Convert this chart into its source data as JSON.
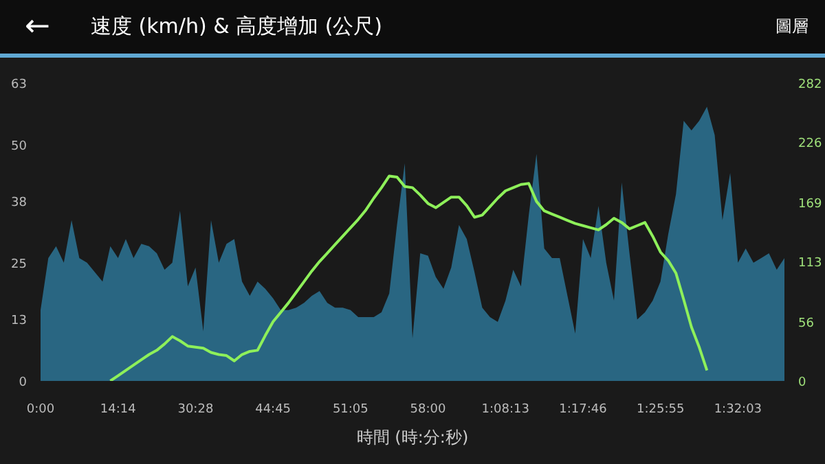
{
  "chart_data": {
    "type": "area",
    "title": "速度 (km/h) & 高度增加 (公尺)",
    "xlabel": "時間 (時:分:秒)",
    "annotations": [
      "←",
      "圖層"
    ],
    "categories": [
      "0:00",
      null,
      null,
      null,
      null,
      null,
      null,
      null,
      null,
      null,
      "14:14",
      null,
      null,
      null,
      null,
      null,
      null,
      null,
      null,
      null,
      "30:28",
      null,
      null,
      null,
      null,
      null,
      null,
      null,
      null,
      null,
      "44:45",
      null,
      null,
      null,
      null,
      null,
      null,
      null,
      null,
      null,
      "51:05",
      null,
      null,
      null,
      null,
      null,
      null,
      null,
      null,
      null,
      "58:00",
      null,
      null,
      null,
      null,
      null,
      null,
      null,
      null,
      null,
      "1:08:13",
      null,
      null,
      null,
      null,
      null,
      null,
      null,
      null,
      null,
      "1:17:46",
      null,
      null,
      null,
      null,
      null,
      null,
      null,
      null,
      null,
      "1:25:55",
      null,
      null,
      null,
      null,
      null,
      null,
      null,
      null,
      null,
      "1:32:03",
      null,
      null,
      null,
      null,
      null,
      null
    ],
    "ylim": [
      0,
      63
    ],
    "y2lim": [
      0,
      282
    ],
    "yticks": [
      0,
      13,
      25,
      38,
      50,
      63
    ],
    "y2ticks": [
      0,
      56,
      113,
      169,
      226,
      282
    ],
    "grid": false,
    "series": [
      {
        "color": "#2b6f8e",
        "values": [
          15,
          26,
          28.5,
          25,
          34,
          26,
          25,
          23,
          21,
          28.5,
          26,
          30,
          26,
          29,
          28.5,
          27,
          23.5,
          25,
          36,
          20,
          24,
          10.5,
          34,
          25,
          29,
          30,
          21,
          18,
          21,
          19.5,
          17.5,
          15,
          15,
          15.5,
          16.5,
          18,
          19,
          16.5,
          15.5,
          15.5,
          15,
          13.5,
          13.5,
          13.5,
          14.5,
          18.5,
          33,
          46,
          9,
          27,
          26.5,
          22,
          19.5,
          24,
          33,
          30,
          23,
          15.5,
          13.5,
          12.5,
          17,
          23.5,
          20,
          35,
          48,
          28,
          26,
          26,
          18,
          10,
          30,
          26,
          37,
          25,
          17,
          42,
          27,
          13,
          14.5,
          17,
          21,
          31,
          39.5,
          55,
          53,
          55,
          58,
          52,
          34,
          44,
          25,
          28,
          25,
          26,
          27,
          23.5,
          26
        ]
      },
      {
        "type": "line",
        "axis": "y2",
        "color": "#8ef05a",
        "values": [
          null,
          null,
          null,
          null,
          null,
          null,
          null,
          null,
          null,
          0,
          5,
          10,
          15,
          20,
          25,
          29,
          35,
          42,
          38,
          33,
          32,
          31,
          27,
          25,
          24,
          19,
          25,
          28,
          29,
          43,
          56,
          65,
          74,
          84,
          94,
          104,
          113,
          121,
          129,
          137,
          145,
          153,
          162,
          173,
          183,
          194,
          193,
          184,
          183,
          176,
          168,
          164,
          169,
          174,
          174,
          166,
          155,
          157,
          165,
          173,
          180,
          183,
          186,
          187,
          170,
          161,
          158,
          155,
          152,
          149,
          147,
          145,
          143,
          148,
          154,
          150,
          144,
          147,
          150,
          137,
          122,
          114,
          102,
          77,
          51,
          32,
          10,
          null,
          null,
          null,
          null,
          null,
          null,
          null,
          null,
          null,
          null
        ]
      }
    ]
  }
}
